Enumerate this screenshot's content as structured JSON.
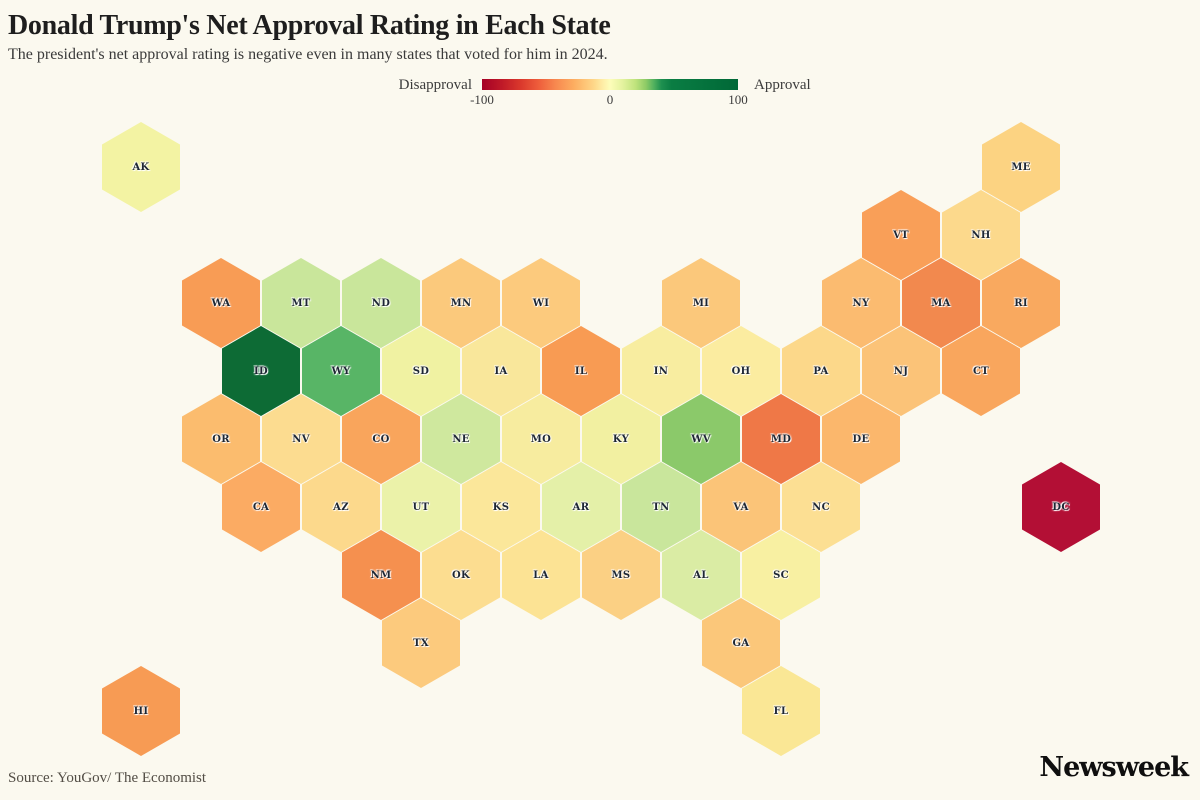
{
  "header": {
    "title": "Donald Trump's Net Approval Rating in Each State",
    "subtitle": "The president's net approval rating is negative even in many states that voted for him in 2024."
  },
  "legend": {
    "left_label": "Disapproval",
    "right_label": "Approval",
    "ticks": [
      "-100",
      "0",
      "100"
    ],
    "gradient_stops": [
      "#a50026 0%",
      "#c01a28 8%",
      "#da382c 15%",
      "#ee5d3b 22%",
      "#f88a50 29%",
      "#fdae61 36%",
      "#fed98b 44%",
      "#feeca5 47%",
      "#fdfdba 50%",
      "#e3f29e 55%",
      "#bfe37c 60%",
      "#8ecb66 64%",
      "#54b25f 67%",
      "#1f9150 70%",
      "#0a7d43 74%",
      "#006837 100%"
    ]
  },
  "footer": {
    "source": "Source: YouGov/ The Economist",
    "brand": "Newsweek"
  },
  "colors": {
    "background": "#fbf9ef",
    "title_text": "#1e1e1e",
    "label_text": "#1d2633"
  },
  "chart_data": {
    "type": "heatmap",
    "subtype": "hex-cartogram-us-states",
    "title": "Donald Trump's Net Approval Rating in Each State",
    "colormap": "RdYlGn",
    "domain": [
      -100,
      100
    ],
    "legend_position": "top",
    "value_note": "net approval estimated from hex color via legend scale",
    "states": [
      {
        "abbr": "AK",
        "row": 0,
        "col": 0,
        "color": "#f3f3a3",
        "net_approval_est": -5
      },
      {
        "abbr": "ME",
        "row": 0,
        "col": 22,
        "color": "#fcd382",
        "net_approval_est": -25
      },
      {
        "abbr": "VT",
        "row": 1,
        "col": 19,
        "color": "#f99f58",
        "net_approval_est": -45
      },
      {
        "abbr": "NH",
        "row": 1,
        "col": 21,
        "color": "#fcd98c",
        "net_approval_est": -23
      },
      {
        "abbr": "WA",
        "row": 2,
        "col": 2,
        "color": "#f89c55",
        "net_approval_est": -47
      },
      {
        "abbr": "MT",
        "row": 2,
        "col": 4,
        "color": "#c9e69b",
        "net_approval_est": 12
      },
      {
        "abbr": "ND",
        "row": 2,
        "col": 6,
        "color": "#c9e69b",
        "net_approval_est": 12
      },
      {
        "abbr": "MN",
        "row": 2,
        "col": 8,
        "color": "#fbc97c",
        "net_approval_est": -29
      },
      {
        "abbr": "WI",
        "row": 2,
        "col": 10,
        "color": "#fcca7d",
        "net_approval_est": -29
      },
      {
        "abbr": "MI",
        "row": 2,
        "col": 14,
        "color": "#fbc87b",
        "net_approval_est": -30
      },
      {
        "abbr": "NY",
        "row": 2,
        "col": 18,
        "color": "#fbbb70",
        "net_approval_est": -34
      },
      {
        "abbr": "MA",
        "row": 2,
        "col": 20,
        "color": "#f2894e",
        "net_approval_est": -52
      },
      {
        "abbr": "RI",
        "row": 2,
        "col": 22,
        "color": "#f9a95f",
        "net_approval_est": -42
      },
      {
        "abbr": "ID",
        "row": 3,
        "col": 3,
        "color": "#0d6b35",
        "net_approval_est": 40
      },
      {
        "abbr": "WY",
        "row": 3,
        "col": 5,
        "color": "#58b566",
        "net_approval_est": 28
      },
      {
        "abbr": "SD",
        "row": 3,
        "col": 7,
        "color": "#f0f2a2",
        "net_approval_est": -3
      },
      {
        "abbr": "IA",
        "row": 3,
        "col": 9,
        "color": "#f9e79b",
        "net_approval_est": -15
      },
      {
        "abbr": "IL",
        "row": 3,
        "col": 11,
        "color": "#f89b53",
        "net_approval_est": -47
      },
      {
        "abbr": "IN",
        "row": 3,
        "col": 13,
        "color": "#f8eda0",
        "net_approval_est": -11
      },
      {
        "abbr": "OH",
        "row": 3,
        "col": 15,
        "color": "#fbeca0",
        "net_approval_est": -12
      },
      {
        "abbr": "PA",
        "row": 3,
        "col": 17,
        "color": "#fcd88a",
        "net_approval_est": -24
      },
      {
        "abbr": "NJ",
        "row": 3,
        "col": 19,
        "color": "#fbc378",
        "net_approval_est": -31
      },
      {
        "abbr": "CT",
        "row": 3,
        "col": 21,
        "color": "#f9a65d",
        "net_approval_est": -43
      },
      {
        "abbr": "OR",
        "row": 4,
        "col": 2,
        "color": "#fbbc6e",
        "net_approval_est": -34
      },
      {
        "abbr": "NV",
        "row": 4,
        "col": 4,
        "color": "#fcdc90",
        "net_approval_est": -21
      },
      {
        "abbr": "CO",
        "row": 4,
        "col": 6,
        "color": "#f9a55c",
        "net_approval_est": -44
      },
      {
        "abbr": "NE",
        "row": 4,
        "col": 8,
        "color": "#cfe89e",
        "net_approval_est": 10
      },
      {
        "abbr": "MO",
        "row": 4,
        "col": 10,
        "color": "#f7ec9f",
        "net_approval_est": -11
      },
      {
        "abbr": "KY",
        "row": 4,
        "col": 12,
        "color": "#f2f0a1",
        "net_approval_est": -7
      },
      {
        "abbr": "WV",
        "row": 4,
        "col": 14,
        "color": "#8bc96a",
        "net_approval_est": 22
      },
      {
        "abbr": "MD",
        "row": 4,
        "col": 16,
        "color": "#ef7847",
        "net_approval_est": -57
      },
      {
        "abbr": "DE",
        "row": 4,
        "col": 18,
        "color": "#fbb76c",
        "net_approval_est": -35
      },
      {
        "abbr": "CA",
        "row": 5,
        "col": 3,
        "color": "#fbab63",
        "net_approval_est": -39
      },
      {
        "abbr": "AZ",
        "row": 5,
        "col": 5,
        "color": "#fcd98c",
        "net_approval_est": -22
      },
      {
        "abbr": "UT",
        "row": 5,
        "col": 7,
        "color": "#ebf2a9",
        "net_approval_est": 1
      },
      {
        "abbr": "KS",
        "row": 5,
        "col": 9,
        "color": "#fbe79a",
        "net_approval_est": -15
      },
      {
        "abbr": "AR",
        "row": 5,
        "col": 11,
        "color": "#e4f0a8",
        "net_approval_est": 3
      },
      {
        "abbr": "TN",
        "row": 5,
        "col": 13,
        "color": "#c9e69c",
        "net_approval_est": 11
      },
      {
        "abbr": "VA",
        "row": 5,
        "col": 15,
        "color": "#fbc478",
        "net_approval_est": -31
      },
      {
        "abbr": "NC",
        "row": 5,
        "col": 17,
        "color": "#fcdf93",
        "net_approval_est": -20
      },
      {
        "abbr": "DC",
        "row": 5,
        "col": 23,
        "color": "#b30f35",
        "net_approval_est": -87
      },
      {
        "abbr": "NM",
        "row": 6,
        "col": 6,
        "color": "#f5904f",
        "net_approval_est": -51
      },
      {
        "abbr": "OK",
        "row": 6,
        "col": 8,
        "color": "#fcdd90",
        "net_approval_est": -21
      },
      {
        "abbr": "LA",
        "row": 6,
        "col": 10,
        "color": "#fce394",
        "net_approval_est": -18
      },
      {
        "abbr": "MS",
        "row": 6,
        "col": 12,
        "color": "#fbd084",
        "net_approval_est": -26
      },
      {
        "abbr": "AL",
        "row": 6,
        "col": 14,
        "color": "#daeca4",
        "net_approval_est": 6
      },
      {
        "abbr": "SC",
        "row": 6,
        "col": 16,
        "color": "#f8f0a2",
        "net_approval_est": -6
      },
      {
        "abbr": "TX",
        "row": 7,
        "col": 7,
        "color": "#fcca7d",
        "net_approval_est": -29
      },
      {
        "abbr": "GA",
        "row": 7,
        "col": 15,
        "color": "#fbc77a",
        "net_approval_est": -30
      },
      {
        "abbr": "HI",
        "row": 8,
        "col": 0,
        "color": "#f79b54",
        "net_approval_est": -46
      },
      {
        "abbr": "FL",
        "row": 8,
        "col": 16,
        "color": "#fae795",
        "net_approval_est": -15
      }
    ]
  }
}
